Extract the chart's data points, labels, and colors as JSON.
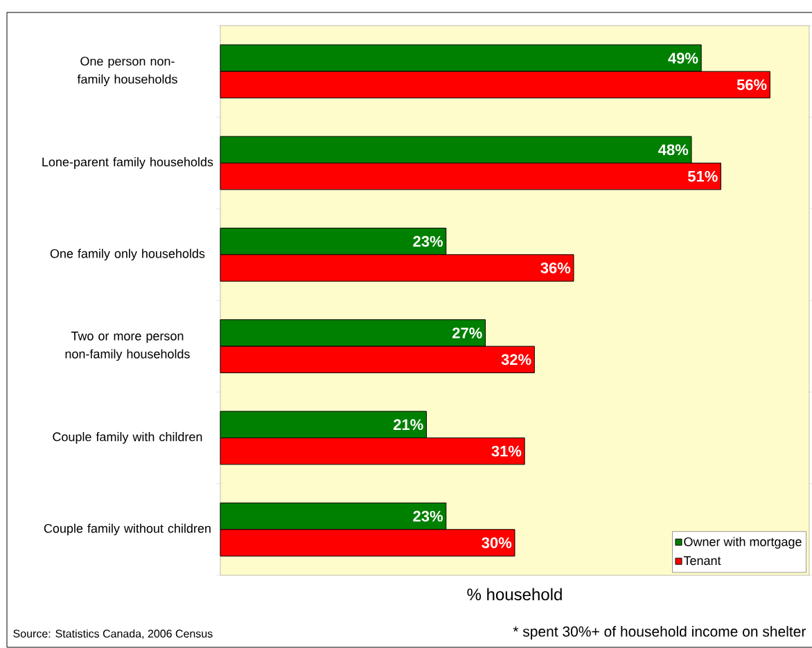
{
  "chart_data": {
    "type": "bar",
    "orientation": "horizontal",
    "categories": [
      "One person non-family households",
      "Lone-parent family households",
      "One family only households",
      "Two or more person non-family households",
      "Couple family with children",
      "Couple family without children"
    ],
    "series": [
      {
        "name": "Owner with mortgage",
        "color": "#008000",
        "values": [
          49,
          48,
          23,
          27,
          21,
          23
        ],
        "value_labels": [
          "49%",
          "48%",
          "23%",
          "27%",
          "21%",
          "23%"
        ]
      },
      {
        "name": "Tenant",
        "color": "#ff0000",
        "values": [
          56,
          51,
          36,
          32,
          31,
          30
        ],
        "value_labels": [
          "56%",
          "51%",
          "36%",
          "32%",
          "31%",
          "30%"
        ]
      }
    ],
    "xlim": [
      0,
      60
    ],
    "xlabel": "% household",
    "legend": "bottom right",
    "annotations": [
      "Source: Statistics Canada, 2006 Census",
      "* spent 30%+ of household income on shelter"
    ]
  }
}
